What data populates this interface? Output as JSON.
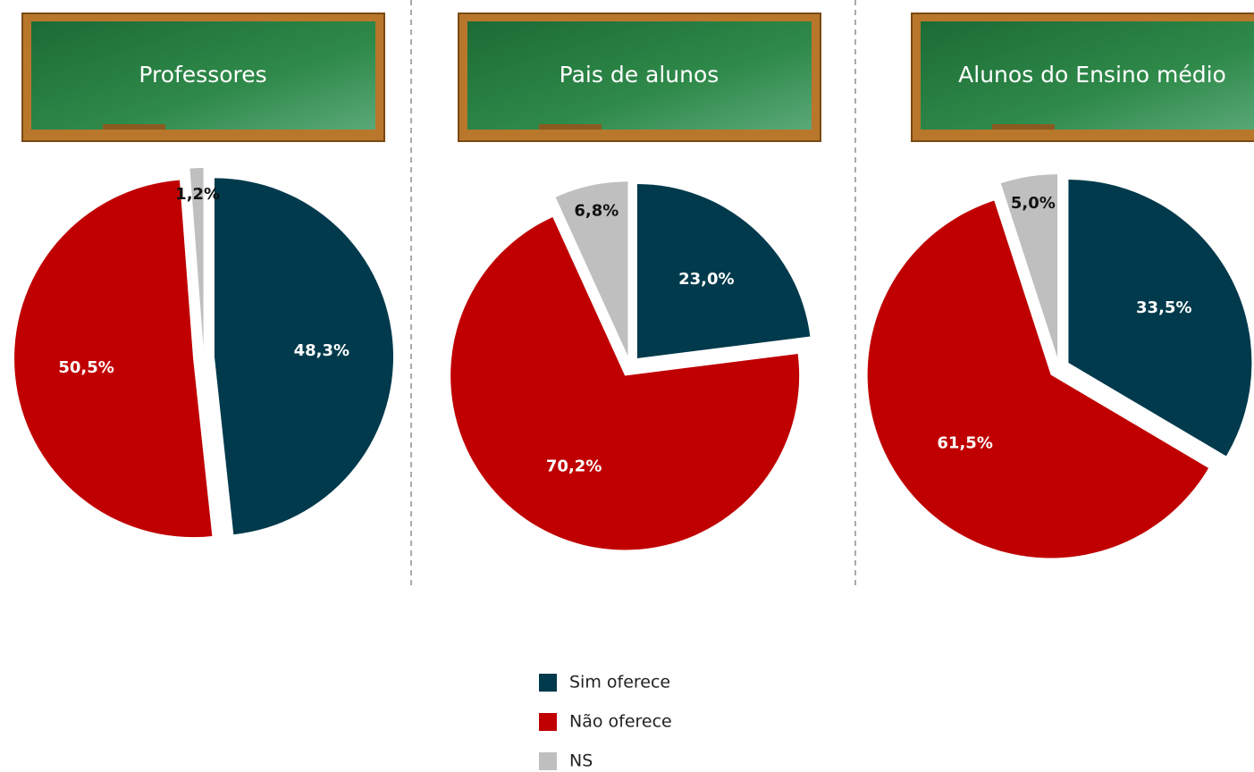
{
  "chart_data": [
    {
      "type": "pie",
      "title": "Professores",
      "categories": [
        "Sim oferece",
        "Não oferece",
        "NS"
      ],
      "values": [
        48.3,
        50.5,
        1.2
      ],
      "value_labels": [
        "48,3%",
        "50,5%",
        "1,2%"
      ],
      "colors": [
        "#003a4c",
        "#c00000",
        "#bfbfbf"
      ]
    },
    {
      "type": "pie",
      "title": "Pais de alunos",
      "categories": [
        "Sim oferece",
        "Não oferece",
        "NS"
      ],
      "values": [
        23.0,
        70.2,
        6.8
      ],
      "value_labels": [
        "23,0%",
        "70,2%",
        "6,8%"
      ],
      "colors": [
        "#003a4c",
        "#c00000",
        "#bfbfbf"
      ]
    },
    {
      "type": "pie",
      "title": "Alunos do Ensino médio",
      "categories": [
        "Sim oferece",
        "Não oferece",
        "NS"
      ],
      "values": [
        33.5,
        61.5,
        5.0
      ],
      "value_labels": [
        "33,5%",
        "61,5%",
        "5,0%"
      ],
      "colors": [
        "#003a4c",
        "#c00000",
        "#bfbfbf"
      ]
    }
  ]
}
